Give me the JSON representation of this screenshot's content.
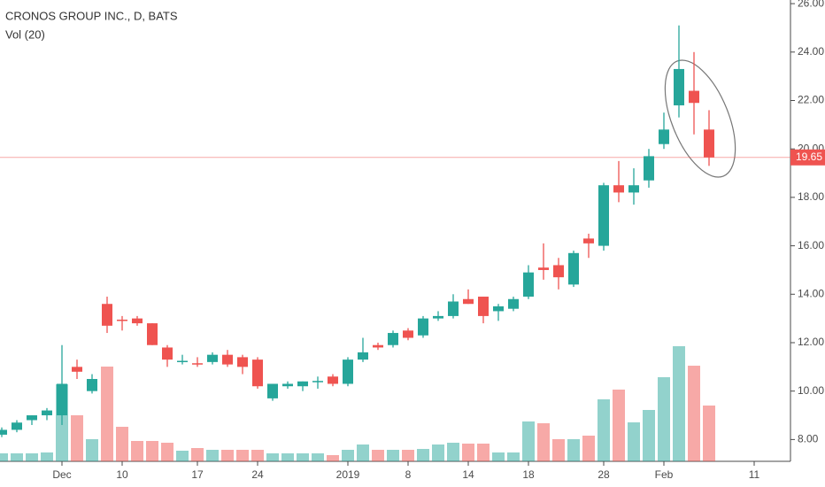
{
  "chart_data": {
    "type": "candlestick",
    "title": "CRONOS GROUP INC., D, BATS",
    "volume_label": "Vol (20)",
    "categories": [
      null,
      null,
      null,
      null,
      "Dec",
      null,
      null,
      null,
      "10",
      null,
      null,
      null,
      null,
      "17",
      null,
      null,
      null,
      "24",
      null,
      null,
      null,
      null,
      null,
      "2019",
      null,
      null,
      null,
      "8",
      null,
      null,
      null,
      "14",
      null,
      null,
      null,
      "18",
      null,
      null,
      null,
      null,
      "28",
      null,
      null,
      null,
      "Feb",
      null,
      null,
      null,
      null,
      null,
      "11"
    ],
    "open": [
      8.2,
      8.4,
      8.8,
      9.0,
      9.0,
      11.0,
      10.0,
      13.6,
      12.95,
      13.0,
      12.8,
      11.8,
      11.2,
      11.15,
      11.2,
      11.5,
      11.4,
      11.3,
      9.7,
      10.2,
      10.2,
      10.38,
      10.6,
      10.3,
      11.3,
      11.9,
      11.9,
      12.5,
      12.3,
      13.0,
      13.1,
      13.8,
      13.9,
      13.3,
      13.4,
      13.9,
      15.1,
      15.2,
      14.4,
      16.3,
      16.0,
      18.5,
      18.2,
      18.7,
      20.2,
      21.8,
      22.4,
      20.8,
      null,
      null,
      null
    ],
    "high": [
      8.5,
      8.8,
      9.0,
      9.3,
      11.9,
      11.3,
      10.7,
      13.9,
      13.1,
      13.1,
      12.8,
      11.9,
      11.5,
      11.4,
      11.6,
      11.7,
      11.5,
      11.4,
      10.3,
      10.4,
      10.4,
      10.6,
      10.7,
      11.4,
      12.2,
      12.0,
      12.5,
      12.6,
      13.1,
      13.3,
      14.0,
      14.2,
      13.9,
      13.6,
      13.9,
      15.2,
      16.1,
      15.5,
      15.8,
      16.5,
      18.6,
      19.5,
      19.2,
      20.0,
      21.5,
      25.1,
      24.0,
      21.6,
      null,
      null,
      null
    ],
    "low": [
      8.1,
      8.3,
      8.6,
      8.8,
      8.6,
      10.5,
      9.9,
      12.4,
      12.5,
      12.7,
      11.9,
      11.0,
      11.1,
      11.0,
      11.1,
      11.0,
      10.7,
      10.1,
      9.6,
      10.1,
      10.0,
      10.1,
      10.2,
      10.2,
      11.2,
      11.7,
      11.8,
      12.1,
      12.2,
      12.9,
      13.0,
      13.6,
      12.8,
      12.9,
      13.3,
      13.8,
      14.6,
      14.2,
      14.3,
      15.5,
      15.8,
      17.8,
      17.7,
      18.4,
      20.0,
      21.3,
      20.6,
      19.3,
      null,
      null,
      null
    ],
    "close": [
      8.4,
      8.7,
      9.0,
      9.2,
      10.3,
      10.8,
      10.5,
      12.7,
      12.9,
      12.8,
      11.9,
      11.3,
      11.25,
      11.1,
      11.5,
      11.1,
      11.0,
      10.2,
      10.3,
      10.3,
      10.4,
      10.42,
      10.3,
      11.3,
      11.6,
      11.8,
      12.4,
      12.2,
      13.0,
      13.1,
      13.7,
      13.6,
      13.1,
      13.5,
      13.8,
      14.9,
      15.0,
      14.7,
      15.7,
      16.1,
      18.5,
      18.2,
      18.5,
      19.7,
      20.8,
      23.3,
      21.9,
      19.65,
      null,
      null,
      null
    ],
    "volume": [
      0.9,
      0.9,
      0.9,
      1.0,
      8.7,
      5.2,
      2.5,
      10.7,
      3.9,
      2.3,
      2.3,
      2.1,
      1.2,
      1.5,
      1.3,
      1.3,
      1.3,
      1.3,
      0.9,
      0.9,
      0.9,
      0.9,
      0.7,
      1.3,
      1.9,
      1.3,
      1.3,
      1.3,
      1.4,
      1.9,
      2.1,
      2.0,
      2.0,
      1.0,
      1.0,
      4.5,
      4.3,
      2.5,
      2.5,
      2.9,
      7.0,
      8.1,
      4.4,
      5.8,
      9.5,
      13.0,
      10.8,
      6.3,
      null,
      null,
      null
    ],
    "up_color": "#26a69a",
    "down_color": "#ef5350",
    "ylim": [
      7.1,
      26.15
    ],
    "yticks": [
      {
        "value": 8,
        "label": "8.00"
      },
      {
        "value": 10,
        "label": "10.00"
      },
      {
        "value": 12,
        "label": "12.00"
      },
      {
        "value": 14,
        "label": "14.00"
      },
      {
        "value": 16,
        "label": "16.00"
      },
      {
        "value": 18,
        "label": "18.00"
      },
      {
        "value": 20,
        "label": "20.00"
      },
      {
        "value": 22,
        "label": "22.00"
      },
      {
        "value": 24,
        "label": "24.00"
      },
      {
        "value": 26,
        "label": "26.00"
      }
    ],
    "last_price": 19.65
  }
}
